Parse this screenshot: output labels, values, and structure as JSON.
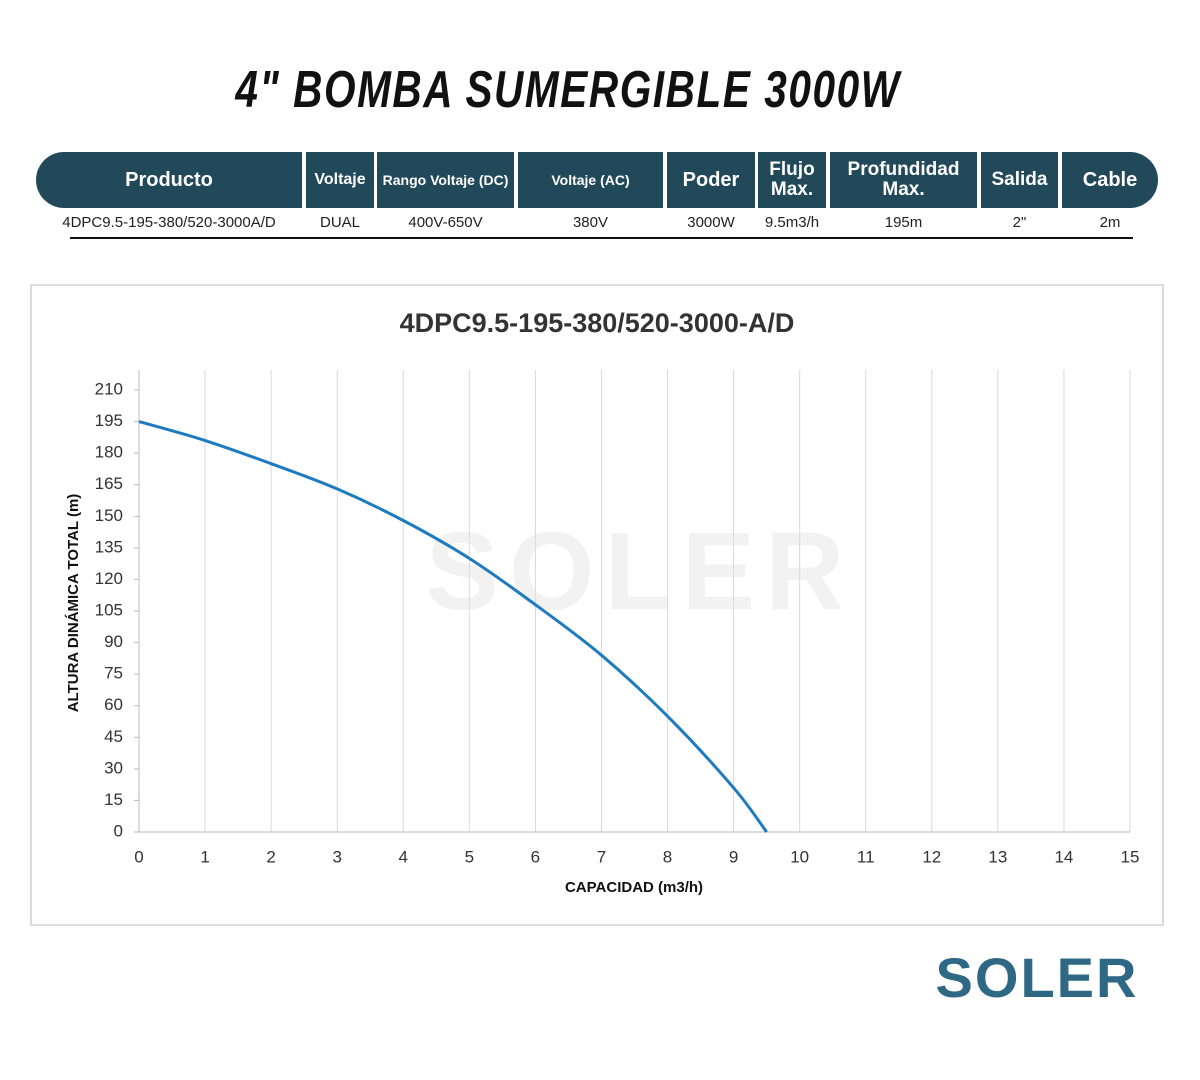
{
  "title": "4\" BOMBA SUMERGIBLE 3000W",
  "table": {
    "headers": [
      "Producto",
      "Voltaje",
      "Rango Voltaje (DC)",
      "Voltaje (AC)",
      "Poder",
      "Flujo Max.",
      "Profundidad Max.",
      "Salida",
      "Cable"
    ],
    "rows": [
      [
        "4DPC9.5-195-380/520-3000A/D",
        "DUAL",
        "400V-650V",
        "380V",
        "3000W",
        "9.5m3/h",
        "195m",
        "2\"",
        "2m"
      ]
    ]
  },
  "brand": "SOLER",
  "chart_data": {
    "type": "line",
    "title": "4DPC9.5-195-380/520-3000-A/D",
    "x_label": "CAPACIDAD (m3/h)",
    "y_label": "ALTURA DINÁMICA TOTAL (m)",
    "x": [
      0,
      1,
      2,
      3,
      4,
      5,
      6,
      7,
      8,
      9,
      9.5
    ],
    "values": [
      195,
      186,
      175,
      163,
      148,
      130,
      108,
      84,
      55,
      21,
      0
    ],
    "color": "#1f7bc0",
    "xlim": [
      0,
      15
    ],
    "xticks": [
      0,
      1,
      2,
      3,
      4,
      5,
      6,
      7,
      8,
      9,
      10,
      11,
      12,
      13,
      14,
      15
    ],
    "ylim": [
      0,
      210
    ],
    "yticks": [
      0,
      15,
      30,
      45,
      60,
      75,
      90,
      105,
      120,
      135,
      150,
      165,
      180,
      195,
      210
    ],
    "grid": "x"
  }
}
